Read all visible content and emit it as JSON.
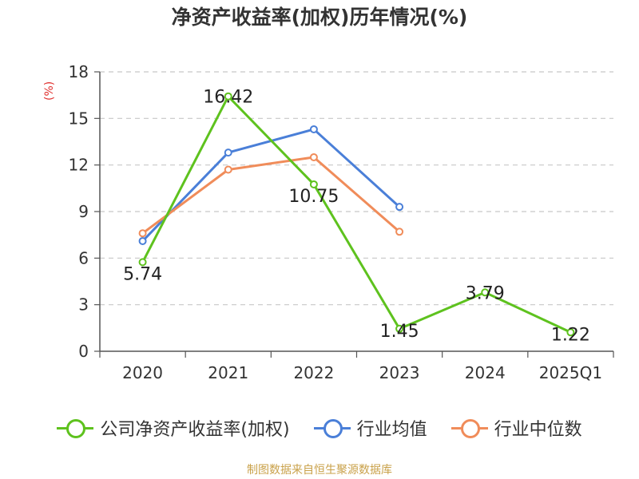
{
  "title": "净资产收益率(加权)历年情况(%)",
  "source": "制图数据来自恒生聚源数据库",
  "chart_data": {
    "type": "line",
    "title": "净资产收益率(加权)历年情况(%)",
    "ylabel": "(%)",
    "xlabel": "",
    "categories": [
      "2020",
      "2021",
      "2022",
      "2023",
      "2024",
      "2025Q1"
    ],
    "ylim": [
      0,
      18
    ],
    "yticks": [
      "0",
      "3",
      "6",
      "9",
      "12",
      "15",
      "18"
    ],
    "grid": true,
    "legend_position": "bottom",
    "series": [
      {
        "name": "公司净资产收益率(加权)",
        "color": "#5ec21e",
        "values": [
          5.74,
          16.42,
          10.75,
          1.45,
          3.79,
          1.22
        ],
        "labels": [
          "5.74",
          "16.42",
          "10.75",
          "1.45",
          "3.79",
          "1.22"
        ]
      },
      {
        "name": "行业均值",
        "color": "#4a7fd8",
        "values": [
          7.1,
          12.8,
          14.3,
          9.3,
          null,
          null
        ],
        "labels": null
      },
      {
        "name": "行业中位数",
        "color": "#f08c5a",
        "values": [
          7.6,
          11.7,
          12.5,
          7.7,
          null,
          null
        ],
        "labels": null
      }
    ]
  }
}
